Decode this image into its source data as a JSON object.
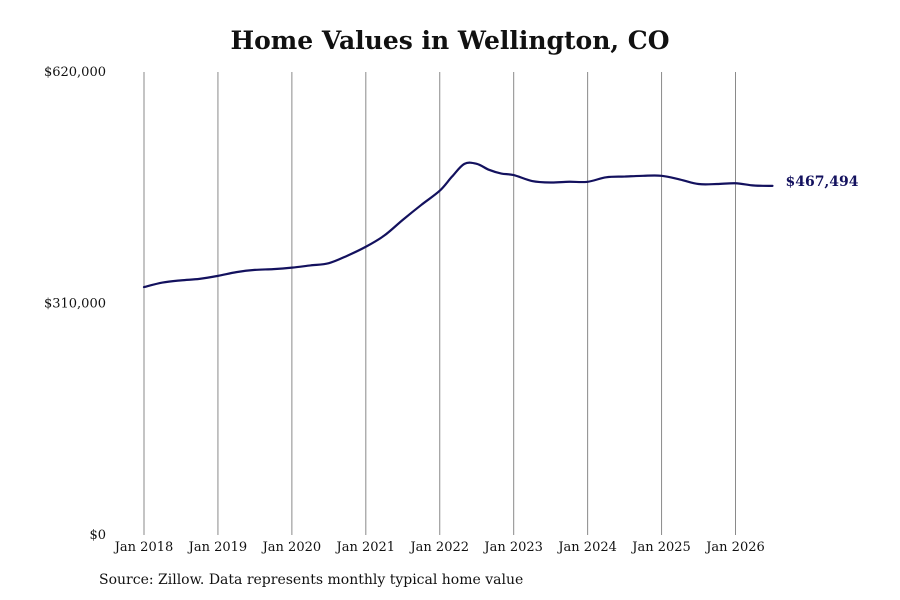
{
  "chart_data": {
    "type": "line",
    "title": "Home Values in Wellington, CO",
    "xlabel": "",
    "ylabel": "",
    "xlim": [
      "2018-01",
      "2026-08"
    ],
    "ylim": [
      0,
      620000
    ],
    "y_ticks": [
      {
        "value": 0,
        "label": "$0"
      },
      {
        "value": 310000,
        "label": "$310,000"
      },
      {
        "value": 620000,
        "label": "$620,000"
      }
    ],
    "x_ticks": [
      {
        "value": "2018-01",
        "label": "Jan 2018"
      },
      {
        "value": "2019-01",
        "label": "Jan 2019"
      },
      {
        "value": "2020-01",
        "label": "Jan 2020"
      },
      {
        "value": "2021-01",
        "label": "Jan 2021"
      },
      {
        "value": "2022-01",
        "label": "Jan 2022"
      },
      {
        "value": "2023-01",
        "label": "Jan 2023"
      },
      {
        "value": "2024-01",
        "label": "Jan 2024"
      },
      {
        "value": "2025-01",
        "label": "Jan 2025"
      },
      {
        "value": "2026-01",
        "label": "Jan 2026"
      }
    ],
    "grid": {
      "vertical": true,
      "horizontal": false
    },
    "series": [
      {
        "name": "",
        "color": "#13115e",
        "points": [
          {
            "x": "2018-01",
            "y": 332000
          },
          {
            "x": "2018-04",
            "y": 338000
          },
          {
            "x": "2018-07",
            "y": 341000
          },
          {
            "x": "2018-10",
            "y": 343000
          },
          {
            "x": "2019-01",
            "y": 347000
          },
          {
            "x": "2019-04",
            "y": 352000
          },
          {
            "x": "2019-07",
            "y": 355000
          },
          {
            "x": "2019-10",
            "y": 356000
          },
          {
            "x": "2020-01",
            "y": 358000
          },
          {
            "x": "2020-04",
            "y": 361000
          },
          {
            "x": "2020-07",
            "y": 364000
          },
          {
            "x": "2020-10",
            "y": 374000
          },
          {
            "x": "2021-01",
            "y": 386000
          },
          {
            "x": "2021-04",
            "y": 401000
          },
          {
            "x": "2021-07",
            "y": 422000
          },
          {
            "x": "2021-10",
            "y": 442000
          },
          {
            "x": "2022-01",
            "y": 461000
          },
          {
            "x": "2022-03",
            "y": 480000
          },
          {
            "x": "2022-05",
            "y": 497000
          },
          {
            "x": "2022-07",
            "y": 497000
          },
          {
            "x": "2022-09",
            "y": 489000
          },
          {
            "x": "2022-11",
            "y": 484000
          },
          {
            "x": "2023-01",
            "y": 482000
          },
          {
            "x": "2023-04",
            "y": 474000
          },
          {
            "x": "2023-07",
            "y": 472000
          },
          {
            "x": "2023-10",
            "y": 473000
          },
          {
            "x": "2024-01",
            "y": 473000
          },
          {
            "x": "2024-04",
            "y": 479000
          },
          {
            "x": "2024-07",
            "y": 480000
          },
          {
            "x": "2024-10",
            "y": 481000
          },
          {
            "x": "2025-01",
            "y": 481000
          },
          {
            "x": "2025-04",
            "y": 476000
          },
          {
            "x": "2025-07",
            "y": 470000
          },
          {
            "x": "2025-10",
            "y": 470000
          },
          {
            "x": "2026-01",
            "y": 471000
          },
          {
            "x": "2026-04",
            "y": 468000
          },
          {
            "x": "2026-07",
            "y": 467494
          }
        ]
      }
    ],
    "end_label": "$467,494",
    "source": "Source: Zillow. Data represents monthly typical home value"
  }
}
